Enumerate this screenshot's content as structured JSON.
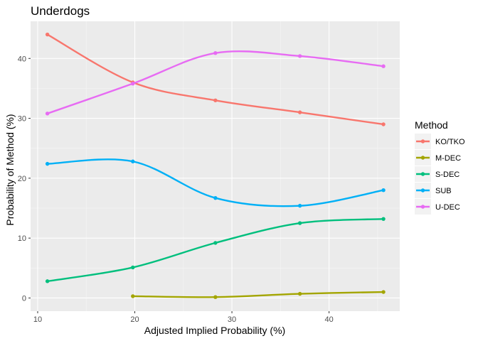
{
  "chart_data": {
    "type": "line",
    "title": "Underdogs",
    "xlabel": "Adjusted Implied Probability (%)",
    "ylabel": "Probability of Method (%)",
    "xlim": [
      9.27,
      47.28
    ],
    "ylim": [
      -2.2,
      46.2
    ],
    "x_ticks": [
      10,
      20,
      30,
      40
    ],
    "y_ticks": [
      0,
      10,
      20,
      30,
      40
    ],
    "grid": true,
    "smoothed": true,
    "legend": {
      "title": "Method",
      "position": "right"
    },
    "series": [
      {
        "name": "KO/TKO",
        "color": "#F8766D",
        "points": [
          [
            11.0,
            44.0
          ],
          [
            19.8,
            36.0
          ],
          [
            28.3,
            33.0
          ],
          [
            37.0,
            31.0
          ],
          [
            45.6,
            29.0
          ]
        ]
      },
      {
        "name": "M-DEC",
        "color": "#A3A500",
        "points": [
          [
            19.8,
            0.3
          ],
          [
            28.3,
            0.15
          ],
          [
            37.0,
            0.7
          ],
          [
            45.6,
            1.0
          ]
        ]
      },
      {
        "name": "S-DEC",
        "color": "#00BF7D",
        "points": [
          [
            11.0,
            2.8
          ],
          [
            19.8,
            5.1
          ],
          [
            28.3,
            9.2
          ],
          [
            37.0,
            12.5
          ],
          [
            45.6,
            13.2
          ]
        ]
      },
      {
        "name": "SUB",
        "color": "#00B0F6",
        "points": [
          [
            11.0,
            22.4
          ],
          [
            19.8,
            22.8
          ],
          [
            28.3,
            16.7
          ],
          [
            37.0,
            15.4
          ],
          [
            45.6,
            18.0
          ]
        ]
      },
      {
        "name": "U-DEC",
        "color": "#E76BF3",
        "points": [
          [
            11.0,
            30.8
          ],
          [
            19.8,
            35.8
          ],
          [
            28.3,
            40.9
          ],
          [
            37.0,
            40.4
          ],
          [
            45.6,
            38.7
          ]
        ]
      }
    ]
  }
}
